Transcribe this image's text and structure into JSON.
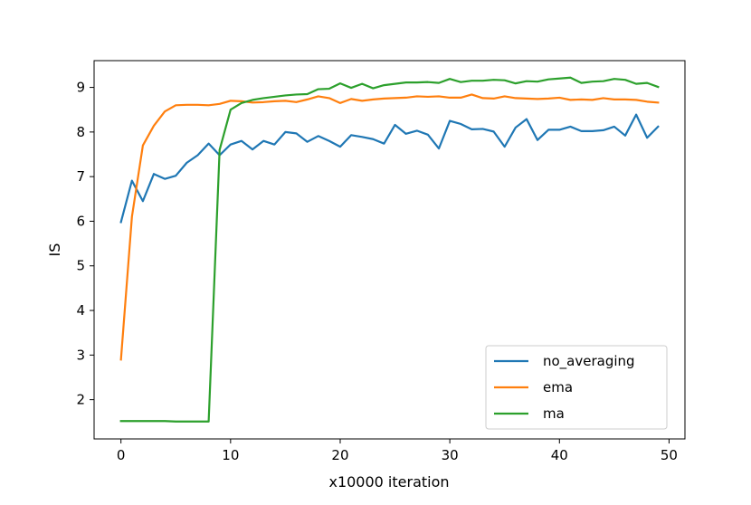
{
  "chart_data": {
    "type": "line",
    "xlabel": "x10000 iteration",
    "ylabel": "IS",
    "xlim": [
      -2.45,
      51.45
    ],
    "ylim": [
      1.12,
      9.6
    ],
    "xticks": [
      0,
      10,
      20,
      30,
      40,
      50
    ],
    "yticks": [
      2,
      3,
      4,
      5,
      6,
      7,
      8,
      9
    ],
    "grid": false,
    "legend_position": "lower right",
    "series": [
      {
        "name": "no_averaging",
        "color": "#1f77b4",
        "x": [
          0,
          1,
          2,
          3,
          4,
          5,
          6,
          7,
          8,
          9,
          10,
          11,
          12,
          13,
          14,
          15,
          16,
          17,
          18,
          19,
          20,
          21,
          22,
          23,
          24,
          25,
          26,
          27,
          28,
          29,
          30,
          31,
          32,
          33,
          34,
          35,
          36,
          37,
          38,
          39,
          40,
          41,
          42,
          43,
          44,
          45,
          46,
          47,
          48,
          49
        ],
        "values": [
          5.98,
          6.91,
          6.45,
          7.06,
          6.95,
          7.02,
          7.31,
          7.48,
          7.74,
          7.48,
          7.72,
          7.8,
          7.61,
          7.8,
          7.72,
          8.0,
          7.97,
          7.78,
          7.91,
          7.8,
          7.67,
          7.93,
          7.89,
          7.84,
          7.74,
          8.16,
          7.96,
          8.03,
          7.94,
          7.63,
          8.25,
          8.18,
          8.06,
          8.07,
          8.01,
          7.67,
          8.1,
          8.29,
          7.82,
          8.05,
          8.05,
          8.12,
          8.02,
          8.02,
          8.04,
          8.12,
          7.92,
          8.39,
          7.87,
          8.12
        ]
      },
      {
        "name": "ema",
        "color": "#ff7f0e",
        "x": [
          0,
          1,
          2,
          3,
          4,
          5,
          6,
          7,
          8,
          9,
          10,
          11,
          12,
          13,
          14,
          15,
          16,
          17,
          18,
          19,
          20,
          21,
          22,
          23,
          24,
          25,
          26,
          27,
          28,
          29,
          30,
          31,
          32,
          33,
          34,
          35,
          36,
          37,
          38,
          39,
          40,
          41,
          42,
          43,
          44,
          45,
          46,
          47,
          48,
          49
        ],
        "values": [
          2.9,
          6.1,
          7.7,
          8.14,
          8.46,
          8.6,
          8.61,
          8.61,
          8.6,
          8.63,
          8.7,
          8.69,
          8.66,
          8.67,
          8.69,
          8.7,
          8.67,
          8.73,
          8.8,
          8.76,
          8.65,
          8.74,
          8.7,
          8.73,
          8.75,
          8.76,
          8.77,
          8.8,
          8.79,
          8.8,
          8.77,
          8.77,
          8.84,
          8.76,
          8.75,
          8.8,
          8.76,
          8.75,
          8.74,
          8.75,
          8.77,
          8.72,
          8.73,
          8.72,
          8.76,
          8.73,
          8.73,
          8.72,
          8.68,
          8.66
        ]
      },
      {
        "name": "ma",
        "color": "#2ca02c",
        "x": [
          0,
          1,
          2,
          3,
          4,
          5,
          6,
          7,
          8,
          9,
          10,
          11,
          12,
          13,
          14,
          15,
          16,
          17,
          18,
          19,
          20,
          21,
          22,
          23,
          24,
          25,
          26,
          27,
          28,
          29,
          30,
          31,
          32,
          33,
          34,
          35,
          36,
          37,
          38,
          39,
          40,
          41,
          42,
          43,
          44,
          45,
          46,
          47,
          48,
          49
        ],
        "values": [
          1.52,
          1.52,
          1.52,
          1.52,
          1.52,
          1.51,
          1.51,
          1.51,
          1.51,
          7.6,
          8.5,
          8.65,
          8.72,
          8.76,
          8.79,
          8.82,
          8.84,
          8.85,
          8.96,
          8.97,
          9.09,
          8.99,
          9.08,
          8.98,
          9.05,
          9.08,
          9.11,
          9.11,
          9.12,
          9.1,
          9.19,
          9.12,
          9.15,
          9.15,
          9.17,
          9.16,
          9.09,
          9.14,
          9.13,
          9.18,
          9.2,
          9.22,
          9.1,
          9.13,
          9.14,
          9.19,
          9.17,
          9.08,
          9.1,
          9.01
        ]
      }
    ]
  }
}
